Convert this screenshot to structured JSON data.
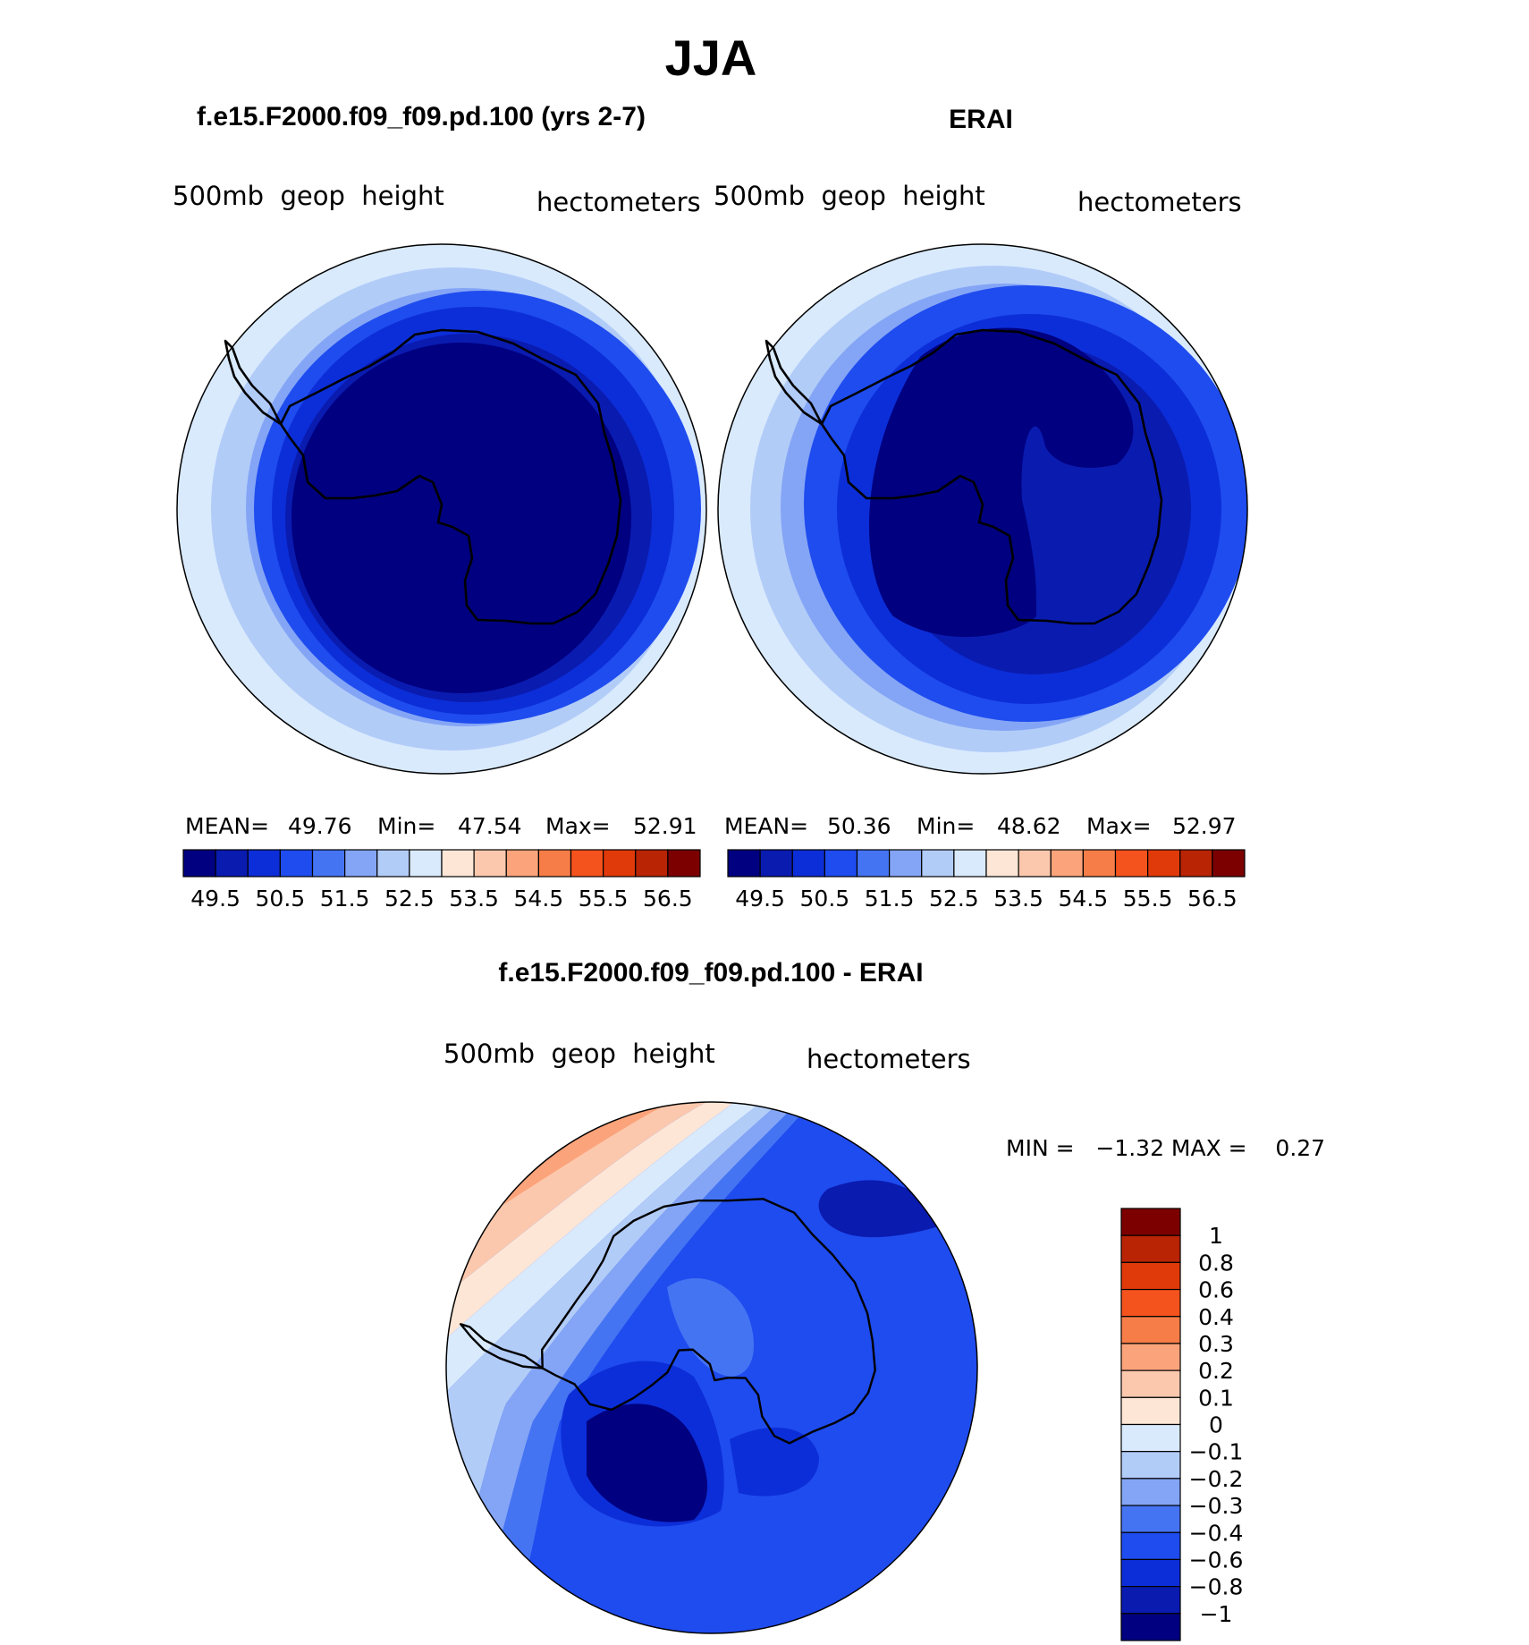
{
  "chart_data": {
    "type": "contour",
    "title": "JJA",
    "panels": [
      {
        "name": "model",
        "title": "f.e15.F2000.f09_f09.pd.100 (yrs 2-7)",
        "left_label": "500mb  geop  height",
        "right_label": "hectometers",
        "stats": {
          "mean_label": "MEAN=",
          "mean": "49.76",
          "min_label": "Min=",
          "min": "47.54",
          "max_label": "Max=",
          "max": "52.91"
        },
        "contour_levels": [
          49.5,
          50,
          50.5,
          51,
          51.5,
          52,
          52.5,
          53,
          53.5,
          54,
          54.5,
          55,
          55.5,
          56,
          56.5
        ],
        "tick_labels": [
          "49.5",
          "50.5",
          "51.5",
          "52.5",
          "53.5",
          "54.5",
          "55.5",
          "56.5"
        ]
      },
      {
        "name": "obs",
        "title": "ERAI",
        "left_label": "500mb  geop  height",
        "right_label": "hectometers",
        "stats": {
          "mean_label": "MEAN=",
          "mean": "50.36",
          "min_label": "Min=",
          "min": "48.62",
          "max_label": "Max=",
          "max": "52.97"
        },
        "contour_levels": [
          49.5,
          50,
          50.5,
          51,
          51.5,
          52,
          52.5,
          53,
          53.5,
          54,
          54.5,
          55,
          55.5,
          56,
          56.5
        ],
        "tick_labels": [
          "49.5",
          "50.5",
          "51.5",
          "52.5",
          "53.5",
          "54.5",
          "55.5",
          "56.5"
        ]
      },
      {
        "name": "difference",
        "title": "f.e15.F2000.f09_f09.pd.100 - ERAI",
        "left_label": "500mb  geop  height",
        "right_label": "hectometers",
        "stats_text": "MIN =   −1.32 MAX =    0.27",
        "min": -1.32,
        "max": 0.27,
        "contour_levels": [
          -1,
          -0.8,
          -0.6,
          -0.4,
          -0.3,
          -0.2,
          -0.1,
          0,
          0.1,
          0.2,
          0.3,
          0.4,
          0.6,
          0.8,
          1
        ],
        "tick_labels": [
          "1",
          "0.8",
          "0.6",
          "0.4",
          "0.3",
          "0.2",
          "0.1",
          "0",
          "−0.1",
          "−0.2",
          "−0.3",
          "−0.4",
          "−0.6",
          "−0.8",
          "−1"
        ]
      }
    ],
    "colors": [
      "#000080",
      "#0a1bb0",
      "#0c2ed8",
      "#1f4cef",
      "#4574f3",
      "#84a5f6",
      "#b2ccf8",
      "#d9eafd",
      "#fde6d6",
      "#fcc8ad",
      "#fba37a",
      "#f77d48",
      "#f5531d",
      "#e03a0b",
      "#b82404",
      "#7c0000"
    ]
  }
}
